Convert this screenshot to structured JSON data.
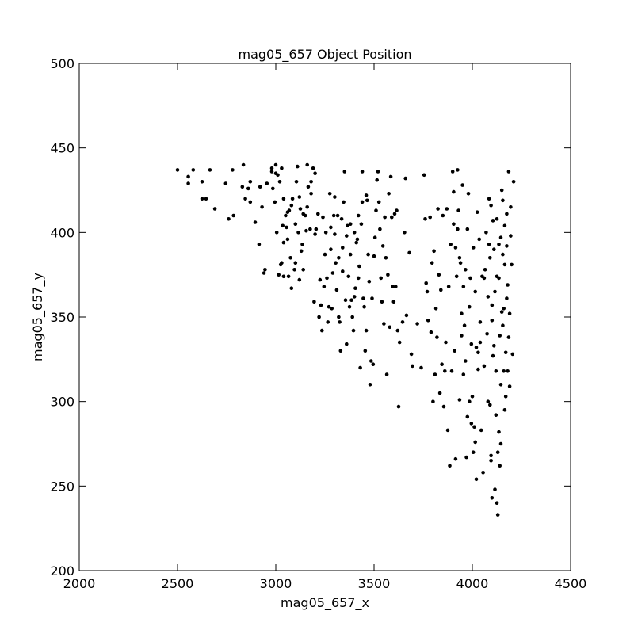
{
  "chart_data": {
    "type": "scatter",
    "title": "mag05_657 Object Position",
    "xlabel": "mag05_657_x",
    "ylabel": "mag05_657_y",
    "xlim": [
      2000,
      4500
    ],
    "ylim": [
      200,
      500
    ],
    "xticks": [
      "2000",
      "2500",
      "3000",
      "3500",
      "4000",
      "4500"
    ],
    "yticks": [
      "200",
      "250",
      "300",
      "350",
      "400",
      "450",
      "500"
    ],
    "grid": false,
    "marker_color": "#000000",
    "series": [
      {
        "points": [
          [
            2500,
            437
          ],
          [
            2555,
            433
          ],
          [
            2580,
            437
          ],
          [
            2555,
            429
          ],
          [
            2625,
            430
          ],
          [
            2625,
            420
          ],
          [
            2645,
            420
          ],
          [
            2665,
            437
          ],
          [
            2690,
            414
          ],
          [
            2745,
            429
          ],
          [
            2760,
            408
          ],
          [
            2780,
            437
          ],
          [
            2785,
            410
          ],
          [
            2835,
            440
          ],
          [
            2830,
            427
          ],
          [
            2845,
            420
          ],
          [
            2860,
            426
          ],
          [
            2870,
            430
          ],
          [
            2870,
            418
          ],
          [
            2895,
            406
          ],
          [
            2915,
            393
          ],
          [
            2920,
            427
          ],
          [
            2930,
            415
          ],
          [
            2940,
            376
          ],
          [
            2945,
            378
          ],
          [
            2955,
            429
          ],
          [
            2980,
            438
          ],
          [
            2985,
            426
          ],
          [
            2995,
            418
          ],
          [
            3000,
            440
          ],
          [
            3005,
            400
          ],
          [
            3010,
            434
          ],
          [
            3015,
            375
          ],
          [
            3025,
            381
          ],
          [
            3030,
            382
          ],
          [
            3030,
            438
          ],
          [
            3035,
            404
          ],
          [
            3040,
            374
          ],
          [
            3040,
            394
          ],
          [
            3050,
            410
          ],
          [
            3055,
            403
          ],
          [
            3060,
            396
          ],
          [
            3065,
            374
          ],
          [
            3068,
            413
          ],
          [
            3075,
            385
          ],
          [
            3080,
            367
          ],
          [
            3085,
            420
          ],
          [
            3095,
            378
          ],
          [
            3100,
            382
          ],
          [
            3105,
            430
          ],
          [
            3110,
            439
          ],
          [
            3115,
            400
          ],
          [
            3120,
            372
          ],
          [
            3125,
            414
          ],
          [
            3130,
            389
          ],
          [
            3135,
            393
          ],
          [
            3140,
            378
          ],
          [
            3150,
            410
          ],
          [
            3155,
            401
          ],
          [
            3160,
            440
          ],
          [
            3165,
            427
          ],
          [
            3175,
            402
          ],
          [
            3180,
            430
          ],
          [
            3190,
            438
          ],
          [
            3195,
            359
          ],
          [
            3200,
            435
          ],
          [
            3205,
            402
          ],
          [
            3215,
            411
          ],
          [
            3220,
            350
          ],
          [
            3225,
            372
          ],
          [
            3230,
            357
          ],
          [
            3235,
            342
          ],
          [
            3240,
            409
          ],
          [
            3245,
            368
          ],
          [
            3255,
            400
          ],
          [
            3265,
            347
          ],
          [
            3270,
            356
          ],
          [
            3275,
            423
          ],
          [
            3280,
            390
          ],
          [
            3285,
            355
          ],
          [
            3290,
            376
          ],
          [
            3295,
            410
          ],
          [
            3300,
            421
          ],
          [
            3305,
            382
          ],
          [
            3310,
            366
          ],
          [
            3315,
            410
          ],
          [
            3320,
            350
          ],
          [
            3325,
            347
          ],
          [
            3330,
            330
          ],
          [
            3335,
            408
          ],
          [
            3340,
            391
          ],
          [
            3345,
            418
          ],
          [
            3350,
            436
          ],
          [
            3355,
            360
          ],
          [
            3360,
            334
          ],
          [
            3365,
            404
          ],
          [
            3370,
            374
          ],
          [
            3375,
            356
          ],
          [
            3380,
            387
          ],
          [
            3385,
            360
          ],
          [
            3390,
            350
          ],
          [
            3395,
            342
          ],
          [
            3400,
            362
          ],
          [
            3405,
            367
          ],
          [
            3410,
            394
          ],
          [
            3415,
            396
          ],
          [
            3420,
            373
          ],
          [
            3425,
            380
          ],
          [
            3430,
            320
          ],
          [
            3435,
            405
          ],
          [
            3440,
            436
          ],
          [
            3445,
            361
          ],
          [
            3450,
            356
          ],
          [
            3455,
            330
          ],
          [
            3460,
            342
          ],
          [
            3465,
            419
          ],
          [
            3470,
            387
          ],
          [
            3475,
            371
          ],
          [
            3480,
            310
          ],
          [
            3485,
            324
          ],
          [
            3490,
            361
          ],
          [
            3495,
            322
          ],
          [
            3500,
            386
          ],
          [
            3505,
            397
          ],
          [
            3510,
            413
          ],
          [
            3515,
            431
          ],
          [
            3520,
            436
          ],
          [
            3525,
            418
          ],
          [
            3530,
            402
          ],
          [
            3535,
            373
          ],
          [
            3540,
            359
          ],
          [
            3545,
            392
          ],
          [
            3550,
            346
          ],
          [
            3555,
            409
          ],
          [
            3560,
            385
          ],
          [
            3565,
            316
          ],
          [
            3570,
            375
          ],
          [
            3575,
            423
          ],
          [
            3580,
            344
          ],
          [
            3585,
            433
          ],
          [
            3590,
            409
          ],
          [
            3595,
            368
          ],
          [
            3600,
            359
          ],
          [
            3605,
            411
          ],
          [
            3610,
            368
          ],
          [
            3615,
            413
          ],
          [
            3620,
            342
          ],
          [
            3625,
            297
          ],
          [
            3630,
            335
          ],
          [
            3645,
            347
          ],
          [
            3655,
            400
          ],
          [
            3660,
            432
          ],
          [
            3665,
            351
          ],
          [
            3680,
            388
          ],
          [
            3690,
            328
          ],
          [
            3695,
            321
          ],
          [
            3720,
            346
          ],
          [
            3740,
            320
          ],
          [
            3755,
            434
          ],
          [
            3760,
            408
          ],
          [
            3765,
            370
          ],
          [
            3770,
            365
          ],
          [
            3775,
            348
          ],
          [
            3785,
            409
          ],
          [
            3790,
            341
          ],
          [
            3795,
            382
          ],
          [
            3800,
            300
          ],
          [
            3805,
            389
          ],
          [
            3810,
            316
          ],
          [
            3815,
            355
          ],
          [
            3820,
            338
          ],
          [
            3825,
            414
          ],
          [
            3830,
            375
          ],
          [
            3835,
            305
          ],
          [
            3840,
            366
          ],
          [
            3845,
            322
          ],
          [
            3850,
            410
          ],
          [
            3855,
            297
          ],
          [
            3860,
            318
          ],
          [
            3865,
            335
          ],
          [
            3870,
            414
          ],
          [
            3875,
            283
          ],
          [
            3880,
            368
          ],
          [
            3885,
            262
          ],
          [
            3890,
            393
          ],
          [
            3895,
            318
          ],
          [
            3900,
            436
          ],
          [
            3905,
            405
          ],
          [
            3910,
            330
          ],
          [
            3915,
            266
          ],
          [
            3920,
            374
          ],
          [
            3925,
            437
          ],
          [
            3930,
            413
          ],
          [
            3935,
            301
          ],
          [
            3940,
            382
          ],
          [
            3945,
            352
          ],
          [
            3950,
            428
          ],
          [
            3955,
            316
          ],
          [
            3960,
            345
          ],
          [
            3965,
            378
          ],
          [
            3970,
            267
          ],
          [
            3975,
            402
          ],
          [
            3980,
            423
          ],
          [
            3985,
            356
          ],
          [
            3990,
            373
          ],
          [
            3995,
            334
          ],
          [
            4000,
            303
          ],
          [
            4005,
            391
          ],
          [
            4010,
            285
          ],
          [
            4015,
            365
          ],
          [
            4020,
            254
          ],
          [
            4025,
            412
          ],
          [
            4030,
            329
          ],
          [
            4035,
            396
          ],
          [
            4040,
            347
          ],
          [
            4045,
            283
          ],
          [
            4050,
            374
          ],
          [
            4055,
            258
          ],
          [
            4060,
            321
          ],
          [
            4065,
            378
          ],
          [
            4070,
            400
          ],
          [
            4075,
            340
          ],
          [
            4080,
            300
          ],
          [
            4085,
            420
          ],
          [
            4090,
            385
          ],
          [
            4095,
            265
          ],
          [
            4100,
            357
          ],
          [
            4105,
            327
          ],
          [
            4110,
            390
          ],
          [
            4115,
            248
          ],
          [
            4120,
            292
          ],
          [
            4125,
            408
          ],
          [
            4130,
            233
          ],
          [
            4135,
            373
          ],
          [
            4140,
            339
          ],
          [
            4145,
            310
          ],
          [
            4150,
            425
          ],
          [
            4155,
            387
          ],
          [
            4160,
            355
          ],
          [
            4165,
            295
          ],
          [
            4170,
            329
          ],
          [
            4175,
            411
          ],
          [
            4180,
            369
          ],
          [
            4185,
            338
          ],
          [
            4190,
            309
          ],
          [
            4195,
            398
          ],
          [
            4200,
            381
          ],
          [
            4205,
            328
          ],
          [
            4210,
            430
          ],
          [
            4140,
            262
          ],
          [
            4135,
            282
          ],
          [
            4130,
            270
          ],
          [
            4125,
            240
          ],
          [
            4145,
            275
          ],
          [
            4100,
            243
          ],
          [
            4095,
            268
          ],
          [
            4090,
            298
          ],
          [
            4155,
            345
          ],
          [
            4165,
            381
          ],
          [
            4175,
            361
          ],
          [
            4190,
            352
          ],
          [
            4180,
            318
          ],
          [
            4170,
            303
          ],
          [
            4160,
            318
          ],
          [
            4150,
            353
          ],
          [
            4120,
            318
          ],
          [
            4110,
            333
          ],
          [
            4100,
            348
          ],
          [
            4080,
            362
          ],
          [
            4060,
            373
          ],
          [
            4040,
            335
          ],
          [
            4030,
            319
          ],
          [
            4020,
            332
          ],
          [
            4015,
            276
          ],
          [
            4005,
            270
          ],
          [
            3995,
            287
          ],
          [
            3985,
            300
          ],
          [
            3975,
            291
          ],
          [
            3965,
            324
          ],
          [
            3955,
            368
          ],
          [
            3945,
            339
          ],
          [
            3935,
            385
          ],
          [
            3925,
            402
          ],
          [
            3915,
            391
          ],
          [
            3905,
            424
          ],
          [
            4195,
            415
          ],
          [
            4185,
            436
          ],
          [
            4175,
            392
          ],
          [
            4165,
            404
          ],
          [
            4155,
            419
          ],
          [
            4145,
            397
          ],
          [
            4135,
            393
          ],
          [
            4125,
            374
          ],
          [
            4115,
            365
          ],
          [
            4105,
            407
          ],
          [
            4095,
            416
          ],
          [
            4085,
            393
          ],
          [
            3120,
            421
          ],
          [
            3140,
            411
          ],
          [
            3160,
            415
          ],
          [
            3180,
            423
          ],
          [
            3200,
            399
          ],
          [
            3100,
            405
          ],
          [
            3080,
            416
          ],
          [
            3060,
            412
          ],
          [
            3040,
            420
          ],
          [
            3020,
            430
          ],
          [
            3000,
            435
          ],
          [
            2980,
            436
          ],
          [
            3250,
            387
          ],
          [
            3260,
            373
          ],
          [
            3280,
            403
          ],
          [
            3300,
            399
          ],
          [
            3320,
            385
          ],
          [
            3340,
            377
          ],
          [
            3360,
            398
          ],
          [
            3380,
            405
          ],
          [
            3400,
            400
          ],
          [
            3420,
            410
          ],
          [
            3440,
            418
          ],
          [
            3460,
            422
          ]
        ]
      }
    ]
  }
}
